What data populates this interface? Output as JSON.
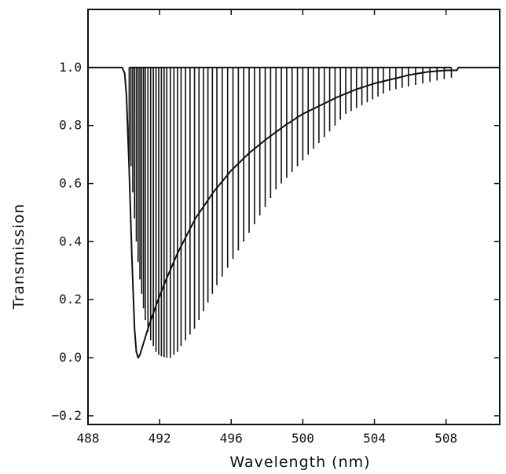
{
  "chart_data": {
    "type": "line",
    "title": "",
    "xlabel": "Wavelength (nm)",
    "ylabel": "Transmission",
    "xlim": [
      488,
      511
    ],
    "ylim": [
      -0.23,
      1.2
    ],
    "x_ticks": [
      {
        "value": 488,
        "label": "488"
      },
      {
        "value": 492,
        "label": "492"
      },
      {
        "value": 496,
        "label": "496"
      },
      {
        "value": 500,
        "label": "500"
      },
      {
        "value": 504,
        "label": "504"
      },
      {
        "value": 508,
        "label": "508"
      }
    ],
    "y_ticks": [
      {
        "value": -0.2,
        "label": "−0.2"
      },
      {
        "value": 0.0,
        "label": "0.0"
      },
      {
        "value": 0.2,
        "label": "0.2"
      },
      {
        "value": 0.4,
        "label": "0.4"
      },
      {
        "value": 0.6,
        "label": "0.6"
      },
      {
        "value": 0.8,
        "label": "0.8"
      },
      {
        "value": 1.0,
        "label": "1.0"
      }
    ],
    "grid": false,
    "series": [
      {
        "style": "smooth",
        "x": [
          488.0,
          489.9,
          490.05,
          490.15,
          490.3,
          490.45,
          490.6,
          490.7,
          490.8,
          490.9,
          491.1,
          491.4,
          491.8,
          492.3,
          493.0,
          494.0,
          495.0,
          496.0,
          497.0,
          498.0,
          499.0,
          500.0,
          501.0,
          502.0,
          503.0,
          504.0,
          505.0,
          506.0,
          507.0,
          508.0,
          508.6,
          508.7,
          511.0
        ],
        "y": [
          1.0,
          1.0,
          0.98,
          0.9,
          0.65,
          0.35,
          0.1,
          0.02,
          0.0,
          0.01,
          0.05,
          0.11,
          0.18,
          0.26,
          0.36,
          0.48,
          0.57,
          0.645,
          0.705,
          0.755,
          0.8,
          0.84,
          0.87,
          0.9,
          0.925,
          0.945,
          0.96,
          0.975,
          0.985,
          0.99,
          0.99,
          1.0,
          1.0
        ]
      },
      {
        "style": "comb",
        "x": [
          490.3,
          490.4,
          490.5,
          490.6,
          490.7,
          490.8,
          490.9,
          491.0,
          491.1,
          491.2,
          491.35,
          491.5,
          491.65,
          491.8,
          491.95,
          492.1,
          492.25,
          492.4,
          492.6,
          492.8,
          493.0,
          493.2,
          493.45,
          493.7,
          493.95,
          494.2,
          494.45,
          494.7,
          494.95,
          495.2,
          495.5,
          495.8,
          496.1,
          496.4,
          496.7,
          497.0,
          497.3,
          497.6,
          497.9,
          498.2,
          498.5,
          498.8,
          499.1,
          499.4,
          499.7,
          500.0,
          500.3,
          500.6,
          500.9,
          501.2,
          501.5,
          501.8,
          502.1,
          502.4,
          502.7,
          503.0,
          503.3,
          503.6,
          503.9,
          504.2,
          504.5,
          504.85,
          505.2,
          505.55,
          505.9,
          506.3,
          506.7,
          507.1,
          507.5,
          507.9,
          508.3
        ],
        "y": [
          0.68,
          0.66,
          0.57,
          0.48,
          0.4,
          0.33,
          0.27,
          0.22,
          0.17,
          0.13,
          0.09,
          0.06,
          0.04,
          0.02,
          0.01,
          0.005,
          0.002,
          0.0,
          0.0,
          0.01,
          0.02,
          0.04,
          0.06,
          0.08,
          0.1,
          0.13,
          0.16,
          0.19,
          0.22,
          0.25,
          0.28,
          0.31,
          0.34,
          0.37,
          0.4,
          0.43,
          0.46,
          0.49,
          0.52,
          0.55,
          0.58,
          0.6,
          0.62,
          0.64,
          0.66,
          0.68,
          0.7,
          0.72,
          0.74,
          0.76,
          0.78,
          0.8,
          0.82,
          0.84,
          0.85,
          0.86,
          0.87,
          0.88,
          0.89,
          0.9,
          0.91,
          0.92,
          0.925,
          0.93,
          0.935,
          0.94,
          0.945,
          0.95,
          0.955,
          0.96,
          0.965
        ]
      }
    ]
  }
}
